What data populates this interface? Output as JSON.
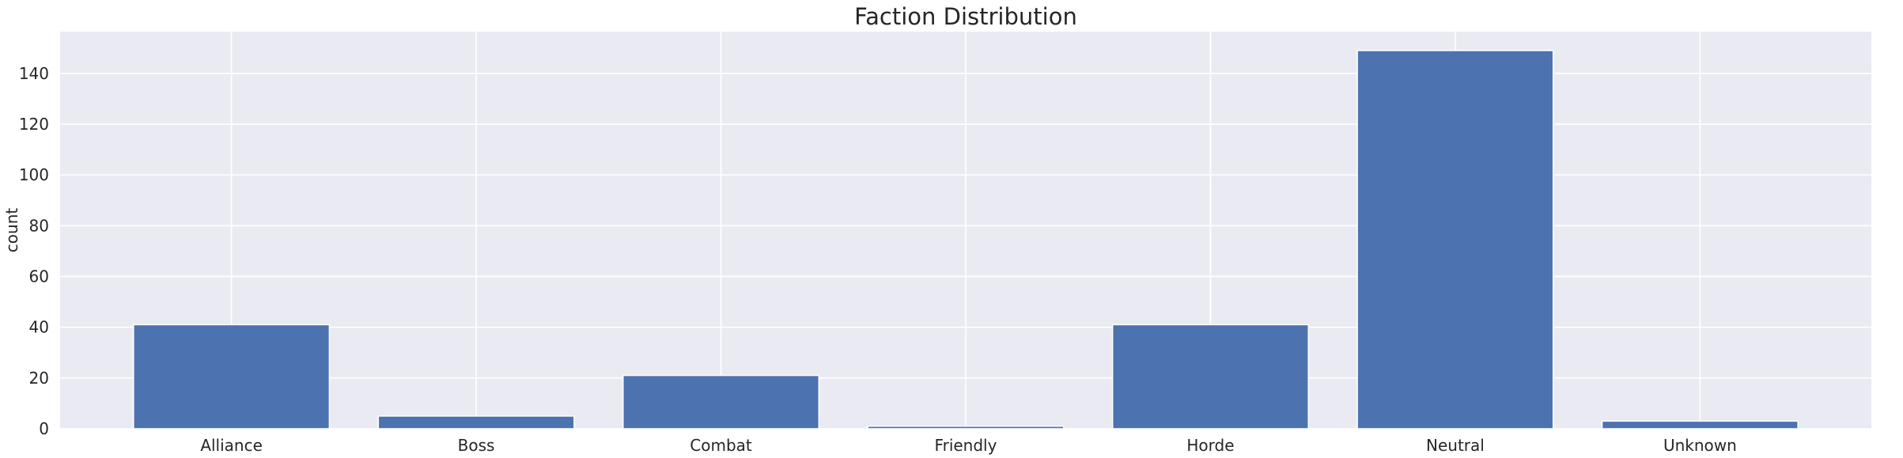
{
  "chart_data": {
    "type": "bar",
    "title": "Faction Distribution",
    "xlabel": "",
    "ylabel": "count",
    "categories": [
      "Alliance",
      "Boss",
      "Combat",
      "Friendly",
      "Horde",
      "Neutral",
      "Unknown"
    ],
    "values": [
      41,
      5,
      21,
      1,
      41,
      149,
      3
    ],
    "ylim": [
      0,
      156.45
    ],
    "yticks": [
      0,
      20,
      40,
      60,
      80,
      100,
      120,
      140
    ],
    "grid": true,
    "legend": "none",
    "colors": {
      "bar": "#4c72b0",
      "plot_background": "#eaeaf2",
      "grid": "#ffffff",
      "text": "#262626"
    }
  }
}
